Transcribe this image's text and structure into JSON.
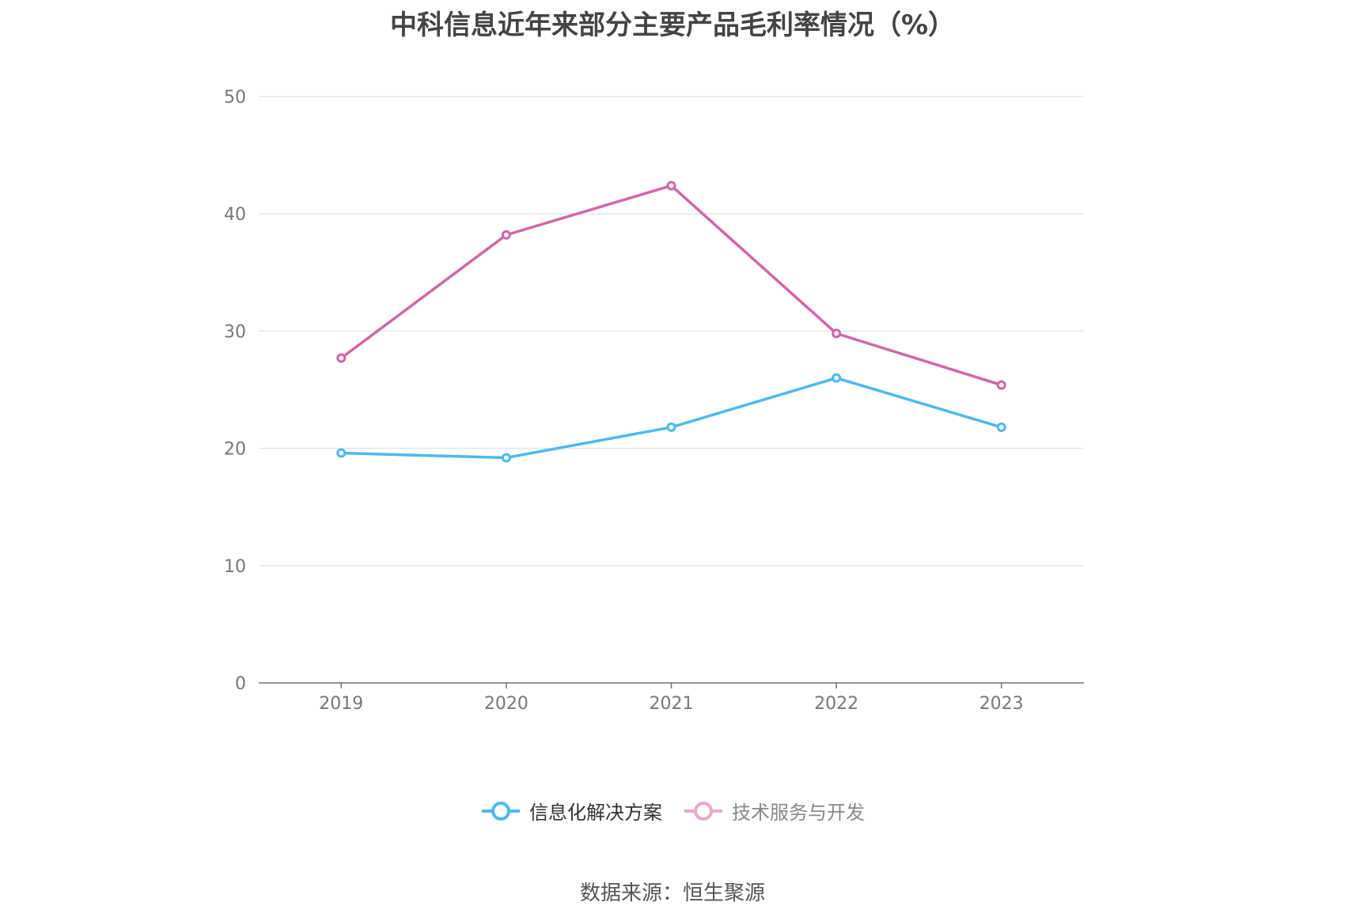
{
  "chart_data": {
    "type": "line",
    "title": "中科信息近年来部分主要产品毛利率情况（%）",
    "categories": [
      "2019",
      "2020",
      "2021",
      "2022",
      "2023"
    ],
    "ylim": [
      0,
      50
    ],
    "yticks": [
      "0",
      "10",
      "20",
      "30",
      "40",
      "50"
    ],
    "grid": true,
    "legend_position": "bottom",
    "series": [
      {
        "name": "信息化解决方案",
        "color": "#4db8ef",
        "values": [
          19.6,
          19.2,
          21.8,
          26.0,
          21.8
        ]
      },
      {
        "name": "技术服务与开发",
        "color": "#d264a8",
        "values": [
          27.7,
          38.2,
          42.4,
          29.8,
          25.4
        ]
      }
    ],
    "source": "数据来源：恒生聚源"
  }
}
